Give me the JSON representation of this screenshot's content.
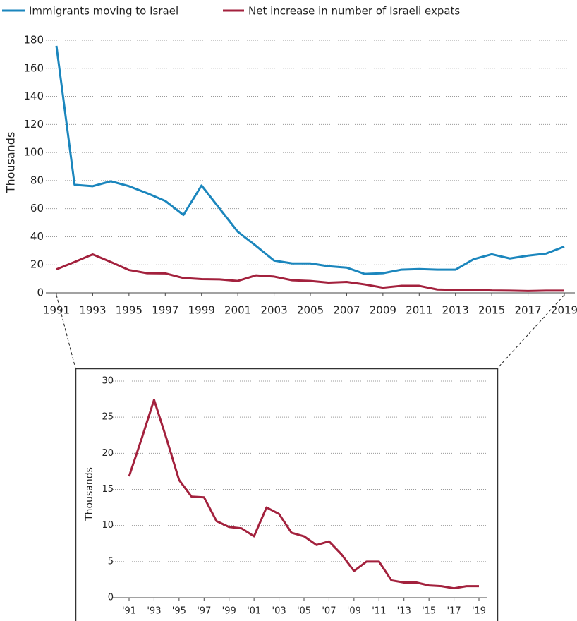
{
  "chart_data": [
    {
      "type": "line",
      "ylabel": "Thousands",
      "grid": true,
      "x": [
        1991,
        1992,
        1993,
        1994,
        1995,
        1996,
        1997,
        1998,
        1999,
        2000,
        2001,
        2002,
        2003,
        2004,
        2005,
        2006,
        2007,
        2008,
        2009,
        2010,
        2011,
        2012,
        2013,
        2014,
        2015,
        2016,
        2017,
        2018,
        2019
      ],
      "xlim": [
        1991,
        2019
      ],
      "xticks": [
        1991,
        1993,
        1995,
        1997,
        1999,
        2001,
        2003,
        2005,
        2007,
        2009,
        2011,
        2013,
        2015,
        2017,
        2019
      ],
      "ylim": [
        0,
        180
      ],
      "yticks": [
        0,
        20,
        40,
        60,
        80,
        100,
        120,
        140,
        160,
        180
      ],
      "series": [
        {
          "name": "Immigrants moving to Israel",
          "color": "#1b86bd",
          "values": [
            176,
            77,
            76,
            79.5,
            76,
            71,
            65.5,
            55.5,
            76.5,
            60,
            43.5,
            33.5,
            23,
            21,
            21,
            19,
            18,
            13.5,
            14,
            16.5,
            17,
            16.5,
            16.5,
            24,
            27.5,
            24.5,
            26.5,
            28,
            33
          ]
        },
        {
          "name": "Net increase in number of Israeli expats",
          "color": "#a3213d",
          "values": [
            16.8,
            22,
            27.4,
            22,
            16.3,
            14,
            13.9,
            10.6,
            9.8,
            9.6,
            8.5,
            12.5,
            11.6,
            9,
            8.5,
            7.3,
            7.8,
            6,
            3.7,
            5,
            5,
            2.4,
            2.1,
            2.1,
            1.7,
            1.6,
            1.3,
            1.6,
            1.6
          ]
        }
      ]
    },
    {
      "type": "line",
      "ylabel": "Thousands",
      "grid": true,
      "x": [
        1991,
        1992,
        1993,
        1994,
        1995,
        1996,
        1997,
        1998,
        1999,
        2000,
        2001,
        2002,
        2003,
        2004,
        2005,
        2006,
        2007,
        2008,
        2009,
        2010,
        2011,
        2012,
        2013,
        2014,
        2015,
        2016,
        2017,
        2018,
        2019
      ],
      "xlim": [
        1991,
        2019
      ],
      "xticks": [
        {
          "value": 1991,
          "label": "'91"
        },
        {
          "value": 1993,
          "label": "'93"
        },
        {
          "value": 1995,
          "label": "'95"
        },
        {
          "value": 1997,
          "label": "'97"
        },
        {
          "value": 1999,
          "label": "'99"
        },
        {
          "value": 2001,
          "label": "'01"
        },
        {
          "value": 2003,
          "label": "'03"
        },
        {
          "value": 2005,
          "label": "'05"
        },
        {
          "value": 2007,
          "label": "'07"
        },
        {
          "value": 2009,
          "label": "'09"
        },
        {
          "value": 2011,
          "label": "'11"
        },
        {
          "value": 2013,
          "label": "'13"
        },
        {
          "value": 2015,
          "label": "'15"
        },
        {
          "value": 2017,
          "label": "'17"
        },
        {
          "value": 2019,
          "label": "'19"
        }
      ],
      "ylim": [
        0,
        30
      ],
      "yticks": [
        0,
        5,
        10,
        15,
        20,
        25,
        30
      ],
      "series": [
        {
          "color": "#a3213d",
          "values": [
            16.8,
            22,
            27.4,
            22,
            16.3,
            14,
            13.9,
            10.6,
            9.8,
            9.6,
            8.5,
            12.5,
            11.6,
            9,
            8.5,
            7.3,
            7.8,
            6,
            3.7,
            5,
            5,
            2.4,
            2.1,
            2.1,
            1.7,
            1.6,
            1.3,
            1.6,
            1.6
          ]
        }
      ]
    }
  ]
}
